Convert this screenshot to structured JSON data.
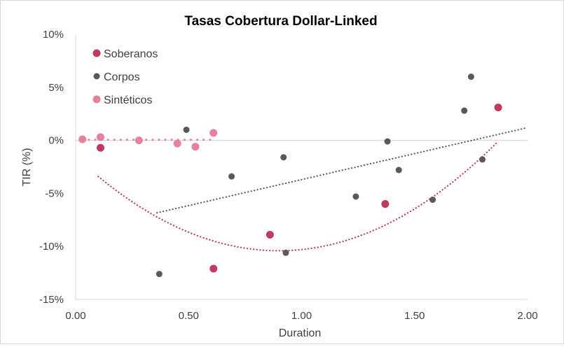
{
  "chart_data": {
    "type": "scatter",
    "title": "Tasas Cobertura Dollar-Linked",
    "xlabel": "Duration",
    "ylabel": "TIR (%)",
    "xlim": [
      0,
      2
    ],
    "ylim": [
      -15,
      10
    ],
    "x_ticks": [
      0,
      0.5,
      1,
      1.5,
      2
    ],
    "x_tick_labels": [
      "0.00",
      "0.50",
      "1.00",
      "1.50",
      "2.00"
    ],
    "y_ticks": [
      10,
      5,
      0,
      -5,
      -10,
      -15
    ],
    "y_tick_labels": [
      "10%",
      "5%",
      "0%",
      "-5%",
      "-10%",
      "-15%"
    ],
    "grid": false,
    "legend_position": "top-left",
    "series": [
      {
        "name": "Soberanos",
        "color": "#c0395e",
        "points": [
          {
            "x": 0.11,
            "y": -0.7
          },
          {
            "x": 0.61,
            "y": -12.1
          },
          {
            "x": 0.86,
            "y": -8.9
          },
          {
            "x": 1.37,
            "y": -6.0
          },
          {
            "x": 1.87,
            "y": 3.1
          }
        ],
        "trendline": {
          "type": "polynomial",
          "coefficients": [
            10.95,
            -19.7,
            -1.55
          ],
          "x_range": [
            0.1,
            1.87
          ]
        }
      },
      {
        "name": "Corpos",
        "color": "#595959",
        "points": [
          {
            "x": 0.37,
            "y": -12.6
          },
          {
            "x": 0.49,
            "y": 1.0
          },
          {
            "x": 0.69,
            "y": -3.4
          },
          {
            "x": 0.92,
            "y": -1.6
          },
          {
            "x": 0.93,
            "y": -10.6
          },
          {
            "x": 1.24,
            "y": -5.3
          },
          {
            "x": 1.38,
            "y": -0.1
          },
          {
            "x": 1.43,
            "y": -2.8
          },
          {
            "x": 1.58,
            "y": -5.6
          },
          {
            "x": 1.72,
            "y": 2.8
          },
          {
            "x": 1.75,
            "y": 6.0
          },
          {
            "x": 1.8,
            "y": -1.8
          }
        ],
        "trendline": {
          "type": "linear",
          "slope": 4.9,
          "intercept": -8.6,
          "x_range": [
            0.36,
            2.0
          ]
        }
      },
      {
        "name": "Sintéticos",
        "color": "#e8829c",
        "points": [
          {
            "x": 0.03,
            "y": 0.1
          },
          {
            "x": 0.11,
            "y": 0.3
          },
          {
            "x": 0.28,
            "y": 0.0
          },
          {
            "x": 0.45,
            "y": -0.3
          },
          {
            "x": 0.53,
            "y": -0.6
          },
          {
            "x": 0.61,
            "y": 0.7
          }
        ],
        "trendline": {
          "type": "linear",
          "slope": 0,
          "intercept": 0.05,
          "x_range": [
            0.03,
            0.61
          ]
        }
      }
    ]
  }
}
